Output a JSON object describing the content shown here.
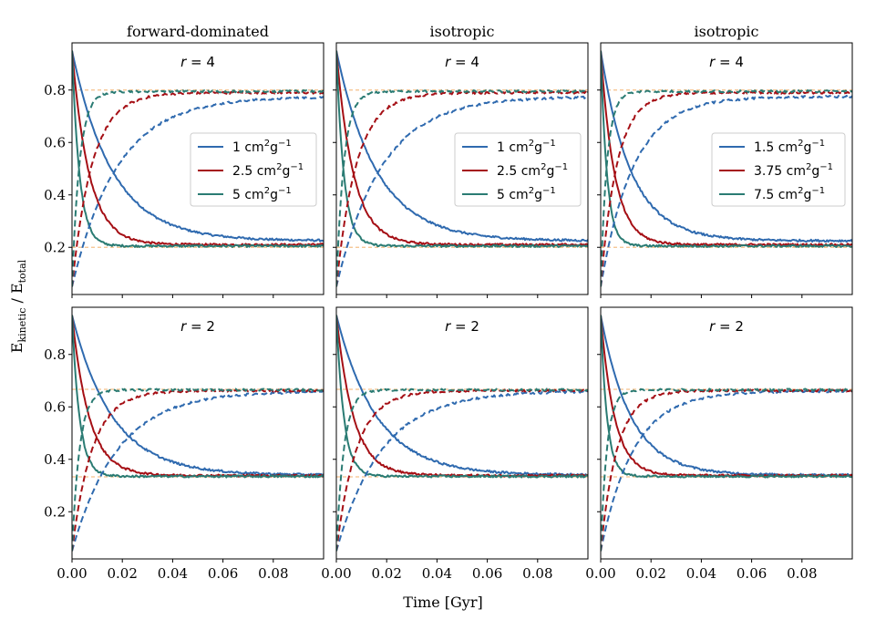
{
  "figure": {
    "xlabel": "Time [Gyr]",
    "ylabel_main": "E",
    "ylabel_sub1": "kinetic",
    "ylabel_mid": " / E",
    "ylabel_sub2": "total"
  },
  "colors": {
    "blue": "#2f6aaf",
    "red": "#a50f15",
    "teal": "#2a7b73",
    "reference": "#f5c08a"
  },
  "chart_data": [
    {
      "type": "line",
      "title": "forward-dominated",
      "annotation": "r = 4",
      "xlim": [
        0,
        0.1
      ],
      "ylim": [
        0.02,
        0.98
      ],
      "xticks": [
        0.0,
        0.02,
        0.04,
        0.06,
        0.08
      ],
      "xtick_labels": [
        "0.00",
        "0.02",
        "0.04",
        "0.06",
        "0.08"
      ],
      "yticks": [
        0.2,
        0.4,
        0.6,
        0.8
      ],
      "ytick_labels": [
        "0.2",
        "0.4",
        "0.6",
        "0.8"
      ],
      "reference_lines": [
        0.8,
        0.2
      ],
      "start_value": 0.95,
      "kinetic_start": 0.05,
      "legend": {
        "position": "center-right",
        "entries": [
          {
            "prefix": "1 cm",
            "mid": "g",
            "color": "blue"
          },
          {
            "prefix": "2.5 cm",
            "mid": "g",
            "color": "red"
          },
          {
            "prefix": "5 cm",
            "mid": "g",
            "color": "teal"
          }
        ]
      },
      "series": [
        {
          "color": "blue",
          "style": "solid",
          "tau": 0.016,
          "final": 0.225
        },
        {
          "color": "red",
          "style": "solid",
          "tau": 0.0068,
          "final": 0.21
        },
        {
          "color": "teal",
          "style": "solid",
          "tau": 0.003,
          "final": 0.205
        },
        {
          "color": "blue",
          "style": "dashed",
          "tau": 0.018,
          "final": 0.775
        },
        {
          "color": "red",
          "style": "dashed",
          "tau": 0.008,
          "final": 0.79
        },
        {
          "color": "teal",
          "style": "dashed",
          "tau": 0.003,
          "final": 0.795
        }
      ]
    },
    {
      "type": "line",
      "title": "isotropic",
      "annotation": "r = 4",
      "xlim": [
        0,
        0.1
      ],
      "ylim": [
        0.02,
        0.98
      ],
      "xticks": [
        0.0,
        0.02,
        0.04,
        0.06,
        0.08
      ],
      "xtick_labels": [
        "0.00",
        "0.02",
        "0.04",
        "0.06",
        "0.08"
      ],
      "yticks": [
        0.2,
        0.4,
        0.6,
        0.8
      ],
      "ytick_labels": [],
      "reference_lines": [
        0.8,
        0.2
      ],
      "start_value": 0.95,
      "kinetic_start": 0.05,
      "legend": {
        "position": "center-right",
        "entries": [
          {
            "prefix": "1 cm",
            "mid": "g",
            "color": "blue"
          },
          {
            "prefix": "2.5 cm",
            "mid": "g",
            "color": "red"
          },
          {
            "prefix": "5 cm",
            "mid": "g",
            "color": "teal"
          }
        ]
      },
      "series": [
        {
          "color": "blue",
          "style": "solid",
          "tau": 0.016,
          "final": 0.225
        },
        {
          "color": "red",
          "style": "solid",
          "tau": 0.0068,
          "final": 0.21
        },
        {
          "color": "teal",
          "style": "solid",
          "tau": 0.003,
          "final": 0.205
        },
        {
          "color": "blue",
          "style": "dashed",
          "tau": 0.018,
          "final": 0.775
        },
        {
          "color": "red",
          "style": "dashed",
          "tau": 0.008,
          "final": 0.79
        },
        {
          "color": "teal",
          "style": "dashed",
          "tau": 0.003,
          "final": 0.795
        }
      ]
    },
    {
      "type": "line",
      "title": "isotropic",
      "annotation": "r = 4",
      "xlim": [
        0,
        0.1
      ],
      "ylim": [
        0.02,
        0.98
      ],
      "xticks": [
        0.0,
        0.02,
        0.04,
        0.06,
        0.08
      ],
      "xtick_labels": [
        "0.00",
        "0.02",
        "0.04",
        "0.06",
        "0.08"
      ],
      "yticks": [
        0.2,
        0.4,
        0.6,
        0.8
      ],
      "ytick_labels": [],
      "reference_lines": [
        0.8,
        0.2
      ],
      "start_value": 0.95,
      "kinetic_start": 0.05,
      "legend": {
        "position": "center-right",
        "entries": [
          {
            "prefix": "1.5 cm",
            "mid": "g",
            "color": "blue"
          },
          {
            "prefix": "3.75 cm",
            "mid": "g",
            "color": "red"
          },
          {
            "prefix": "7.5 cm",
            "mid": "g",
            "color": "teal"
          }
        ]
      },
      "series": [
        {
          "color": "blue",
          "style": "solid",
          "tau": 0.012,
          "final": 0.225
        },
        {
          "color": "red",
          "style": "solid",
          "tau": 0.0055,
          "final": 0.21
        },
        {
          "color": "teal",
          "style": "solid",
          "tau": 0.0025,
          "final": 0.205
        },
        {
          "color": "blue",
          "style": "dashed",
          "tau": 0.013,
          "final": 0.775
        },
        {
          "color": "red",
          "style": "dashed",
          "tau": 0.0065,
          "final": 0.79
        },
        {
          "color": "teal",
          "style": "dashed",
          "tau": 0.0025,
          "final": 0.795
        }
      ]
    },
    {
      "type": "line",
      "title": "",
      "annotation": "r = 2",
      "xlim": [
        0,
        0.1
      ],
      "ylim": [
        0.02,
        0.98
      ],
      "xticks": [
        0.0,
        0.02,
        0.04,
        0.06,
        0.08
      ],
      "xtick_labels": [
        "0.00",
        "0.02",
        "0.04",
        "0.06",
        "0.08"
      ],
      "yticks": [
        0.2,
        0.4,
        0.6,
        0.8
      ],
      "ytick_labels": [
        "0.2",
        "0.4",
        "0.6",
        "0.8"
      ],
      "reference_lines": [
        0.667,
        0.333
      ],
      "start_value": 0.95,
      "kinetic_start": 0.05,
      "series": [
        {
          "color": "blue",
          "style": "solid",
          "tau": 0.016,
          "final": 0.34
        },
        {
          "color": "red",
          "style": "solid",
          "tau": 0.0068,
          "final": 0.338
        },
        {
          "color": "teal",
          "style": "solid",
          "tau": 0.003,
          "final": 0.335
        },
        {
          "color": "blue",
          "style": "dashed",
          "tau": 0.018,
          "final": 0.66
        },
        {
          "color": "red",
          "style": "dashed",
          "tau": 0.008,
          "final": 0.662
        },
        {
          "color": "teal",
          "style": "dashed",
          "tau": 0.003,
          "final": 0.665
        }
      ]
    },
    {
      "type": "line",
      "title": "",
      "annotation": "r = 2",
      "xlim": [
        0,
        0.1
      ],
      "ylim": [
        0.02,
        0.98
      ],
      "xticks": [
        0.0,
        0.02,
        0.04,
        0.06,
        0.08
      ],
      "xtick_labels": [
        "0.00",
        "0.02",
        "0.04",
        "0.06",
        "0.08"
      ],
      "yticks": [
        0.2,
        0.4,
        0.6,
        0.8
      ],
      "ytick_labels": [],
      "reference_lines": [
        0.667,
        0.333
      ],
      "start_value": 0.95,
      "kinetic_start": 0.05,
      "series": [
        {
          "color": "blue",
          "style": "solid",
          "tau": 0.016,
          "final": 0.34
        },
        {
          "color": "red",
          "style": "solid",
          "tau": 0.0068,
          "final": 0.338
        },
        {
          "color": "teal",
          "style": "solid",
          "tau": 0.003,
          "final": 0.335
        },
        {
          "color": "blue",
          "style": "dashed",
          "tau": 0.018,
          "final": 0.66
        },
        {
          "color": "red",
          "style": "dashed",
          "tau": 0.008,
          "final": 0.662
        },
        {
          "color": "teal",
          "style": "dashed",
          "tau": 0.003,
          "final": 0.665
        }
      ]
    },
    {
      "type": "line",
      "title": "",
      "annotation": "r = 2",
      "xlim": [
        0,
        0.1
      ],
      "ylim": [
        0.02,
        0.98
      ],
      "xticks": [
        0.0,
        0.02,
        0.04,
        0.06,
        0.08
      ],
      "xtick_labels": [
        "0.00",
        "0.02",
        "0.04",
        "0.06",
        "0.08"
      ],
      "yticks": [
        0.2,
        0.4,
        0.6,
        0.8
      ],
      "ytick_labels": [],
      "reference_lines": [
        0.667,
        0.333
      ],
      "start_value": 0.95,
      "kinetic_start": 0.05,
      "series": [
        {
          "color": "blue",
          "style": "solid",
          "tau": 0.012,
          "final": 0.34
        },
        {
          "color": "red",
          "style": "solid",
          "tau": 0.0055,
          "final": 0.338
        },
        {
          "color": "teal",
          "style": "solid",
          "tau": 0.0025,
          "final": 0.335
        },
        {
          "color": "blue",
          "style": "dashed",
          "tau": 0.013,
          "final": 0.66
        },
        {
          "color": "red",
          "style": "dashed",
          "tau": 0.0065,
          "final": 0.662
        },
        {
          "color": "teal",
          "style": "dashed",
          "tau": 0.0025,
          "final": 0.665
        }
      ]
    }
  ]
}
